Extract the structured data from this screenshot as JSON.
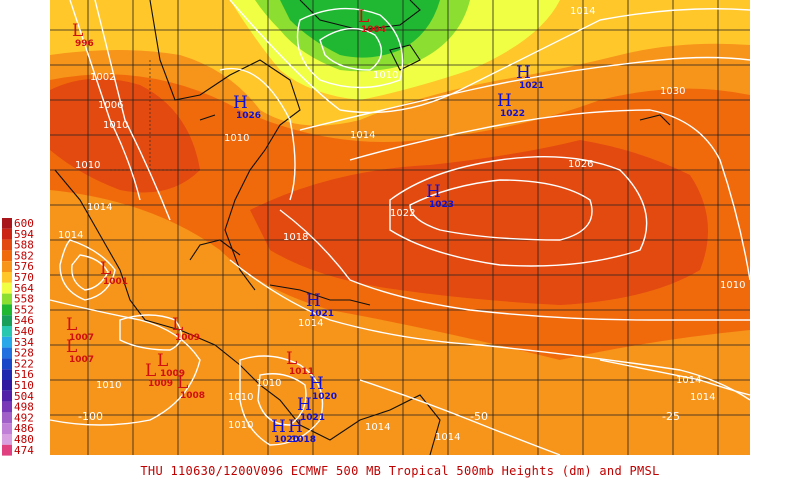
{
  "caption": "THU 110630/1200V096  ECMWF  500 MB Tropical 500mb Heights (dm) and PMSL",
  "legend": [
    {
      "value": "600",
      "color": "#a8151a"
    },
    {
      "value": "594",
      "color": "#cc2414"
    },
    {
      "value": "588",
      "color": "#e34a10"
    },
    {
      "value": "582",
      "color": "#f06a0c"
    },
    {
      "value": "576",
      "color": "#f7941a"
    },
    {
      "value": "570",
      "color": "#ffc72a"
    },
    {
      "value": "564",
      "color": "#f0ff44"
    },
    {
      "value": "558",
      "color": "#8cdf30"
    },
    {
      "value": "552",
      "color": "#20b832"
    },
    {
      "value": "546",
      "color": "#18a05a"
    },
    {
      "value": "540",
      "color": "#28c8b0"
    },
    {
      "value": "534",
      "color": "#28a8e8"
    },
    {
      "value": "528",
      "color": "#2070e0"
    },
    {
      "value": "522",
      "color": "#1848c8"
    },
    {
      "value": "516",
      "color": "#2028b0"
    },
    {
      "value": "510",
      "color": "#3018a0"
    },
    {
      "value": "504",
      "color": "#5020a8"
    },
    {
      "value": "498",
      "color": "#7838b8"
    },
    {
      "value": "492",
      "color": "#a060c8"
    },
    {
      "value": "486",
      "color": "#c080d8"
    },
    {
      "value": "480",
      "color": "#d8a0e0"
    },
    {
      "value": "474",
      "color": "#e04080"
    }
  ],
  "pressure_centers": [
    {
      "type": "L",
      "value": "996",
      "color": "#d01010"
    },
    {
      "type": "L",
      "value": "1004",
      "color": "#d01010"
    },
    {
      "type": "H",
      "value": "1026",
      "color": "#1010d0"
    },
    {
      "type": "H",
      "value": "1021",
      "color": "#1010d0"
    },
    {
      "type": "H",
      "value": "1022",
      "color": "#1010d0"
    },
    {
      "type": "H",
      "value": "1023",
      "color": "#1010d0"
    },
    {
      "type": "L",
      "value": "1001",
      "color": "#d01010"
    },
    {
      "type": "H",
      "value": "1021",
      "color": "#1010d0"
    },
    {
      "type": "L",
      "value": "1007",
      "color": "#d01010"
    },
    {
      "type": "L",
      "value": "1007",
      "color": "#d01010"
    },
    {
      "type": "L",
      "value": "1009",
      "color": "#d01010"
    },
    {
      "type": "L",
      "value": "1009",
      "color": "#d01010"
    },
    {
      "type": "L",
      "value": "1008",
      "color": "#d01010"
    },
    {
      "type": "L",
      "value": "1009",
      "color": "#d01010"
    },
    {
      "type": "L",
      "value": "1011",
      "color": "#d01010"
    },
    {
      "type": "H",
      "value": "1020",
      "color": "#1010d0"
    },
    {
      "type": "H",
      "value": "1021",
      "color": "#1010d0"
    },
    {
      "type": "H",
      "value": "1020",
      "color": "#1010d0"
    },
    {
      "type": "H",
      "value": "1018",
      "color": "#1010d0"
    }
  ],
  "isobar_labels": [
    "1002",
    "1006",
    "1010",
    "1010",
    "1014",
    "1014",
    "1018",
    "1014",
    "1010",
    "1010",
    "1010",
    "1014",
    "1014",
    "1010",
    "1022",
    "1026",
    "1030",
    "1014",
    "1010",
    "1014",
    "1014",
    "1010",
    "1010",
    "1014"
  ],
  "longitude_labels": [
    "-100",
    "-50",
    "-25"
  ]
}
